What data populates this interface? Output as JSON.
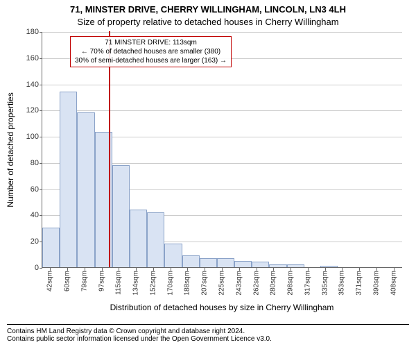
{
  "title_line1": "71, MINSTER DRIVE, CHERRY WILLINGHAM, LINCOLN, LN3 4LH",
  "title_line2": "Size of property relative to detached houses in Cherry Willingham",
  "chart": {
    "type": "histogram",
    "ylabel": "Number of detached properties",
    "xlabel": "Distribution of detached houses by size in Cherry Willingham",
    "ylim": [
      0,
      180
    ],
    "ytick_step": 20,
    "yticks": [
      0,
      20,
      40,
      60,
      80,
      100,
      120,
      140,
      160,
      180
    ],
    "background_color": "#ffffff",
    "grid_color": "#cccccc",
    "bar_fill": "#d9e3f3",
    "bar_stroke": "#8aa2c8",
    "ref_line_color": "#c00000",
    "ref_line_x_value": 113,
    "bins": [
      {
        "label": "42sqm",
        "value": 30
      },
      {
        "label": "60sqm",
        "value": 134
      },
      {
        "label": "79sqm",
        "value": 118
      },
      {
        "label": "97sqm",
        "value": 103
      },
      {
        "label": "115sqm",
        "value": 78
      },
      {
        "label": "134sqm",
        "value": 44
      },
      {
        "label": "152sqm",
        "value": 42
      },
      {
        "label": "170sqm",
        "value": 18
      },
      {
        "label": "188sqm",
        "value": 9
      },
      {
        "label": "207sqm",
        "value": 7
      },
      {
        "label": "225sqm",
        "value": 7
      },
      {
        "label": "243sqm",
        "value": 5
      },
      {
        "label": "262sqm",
        "value": 4
      },
      {
        "label": "280sqm",
        "value": 2
      },
      {
        "label": "298sqm",
        "value": 2
      },
      {
        "label": "317sqm",
        "value": 0
      },
      {
        "label": "335sqm",
        "value": 1
      },
      {
        "label": "353sqm",
        "value": 0
      },
      {
        "label": "371sqm",
        "value": 0
      },
      {
        "label": "390sqm",
        "value": 0
      },
      {
        "label": "408sqm",
        "value": 0
      }
    ],
    "annotation": {
      "border_color": "#c00000",
      "lines": [
        "71 MINSTER DRIVE: 113sqm",
        "← 70% of detached houses are smaller (380)",
        "30% of semi-detached houses are larger (163) →"
      ]
    }
  },
  "footer": {
    "line1": "Contains HM Land Registry data © Crown copyright and database right 2024.",
    "line2": "Contains public sector information licensed under the Open Government Licence v3.0."
  }
}
